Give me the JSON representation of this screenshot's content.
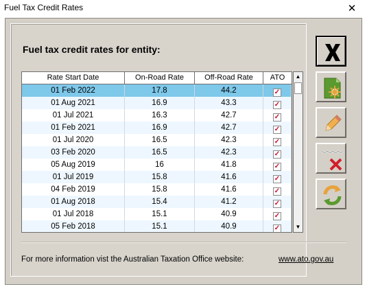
{
  "window": {
    "title": "Fuel Tax Credit Rates",
    "close_glyph": "✕"
  },
  "heading": "Fuel tax credit rates for entity:",
  "table": {
    "columns": [
      "Rate Start Date",
      "On-Road Rate",
      "Off-Road Rate",
      "ATO"
    ],
    "rows": [
      {
        "date": "01 Feb 2022",
        "on": "17.8",
        "off": "44.2",
        "ato": true
      },
      {
        "date": "01 Aug 2021",
        "on": "16.9",
        "off": "43.3",
        "ato": true
      },
      {
        "date": "01 Jul 2021",
        "on": "16.3",
        "off": "42.7",
        "ato": true
      },
      {
        "date": "01 Feb 2021",
        "on": "16.9",
        "off": "42.7",
        "ato": true
      },
      {
        "date": "01 Jul 2020",
        "on": "16.5",
        "off": "42.3",
        "ato": true
      },
      {
        "date": "03 Feb 2020",
        "on": "16.5",
        "off": "42.3",
        "ato": true
      },
      {
        "date": "05 Aug 2019",
        "on": "16",
        "off": "41.8",
        "ato": true
      },
      {
        "date": "01 Jul 2019",
        "on": "15.8",
        "off": "41.6",
        "ato": true
      },
      {
        "date": "04 Feb 2019",
        "on": "15.8",
        "off": "41.6",
        "ato": true
      },
      {
        "date": "01 Aug 2018",
        "on": "15.4",
        "off": "41.2",
        "ato": true
      },
      {
        "date": "01 Jul 2018",
        "on": "15.1",
        "off": "40.9",
        "ato": true
      },
      {
        "date": "05 Feb 2018",
        "on": "15.1",
        "off": "40.9",
        "ato": true
      }
    ],
    "selected_row": 0
  },
  "footer": {
    "text": "For more information vist the Australian Taxation Office website:",
    "link": "www.ato.gov.au"
  },
  "buttons": [
    "close-x-icon",
    "new-rate-icon",
    "edit-pencil-icon",
    "delete-x-icon",
    "refresh-sync-icon"
  ],
  "colors": {
    "selected_row": "#7ec8ea",
    "alt_row": "#eef7ff",
    "check_red": "#c8102e",
    "icon_green": "#5b9a2f",
    "icon_orange": "#e8a23a"
  }
}
